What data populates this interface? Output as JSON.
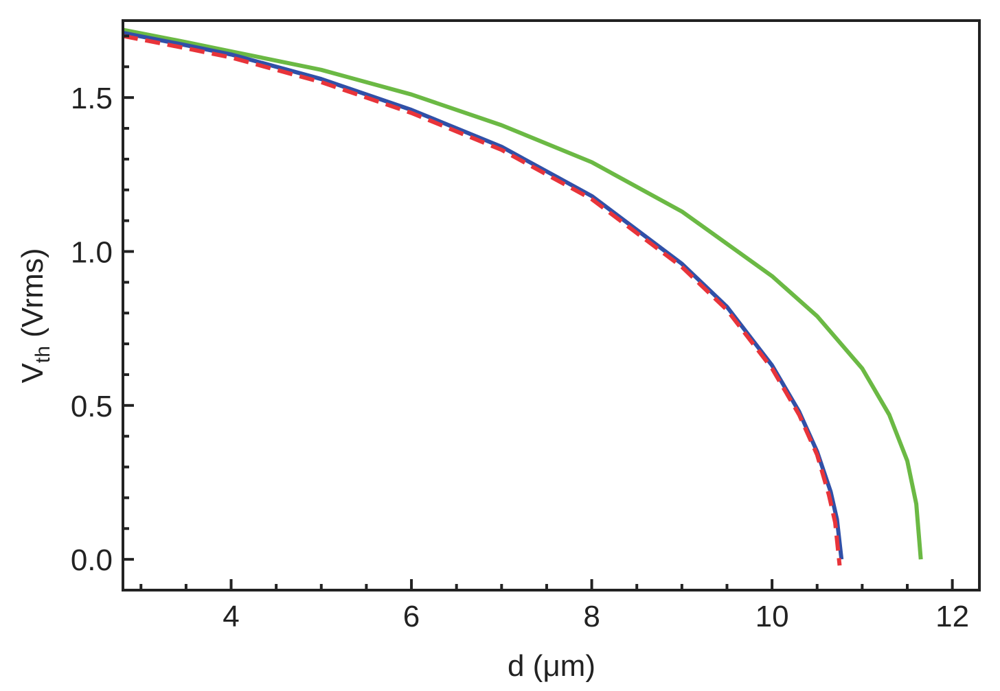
{
  "chart_data": {
    "type": "line",
    "xlabel": "d (μm)",
    "ylabel_main": "V",
    "ylabel_sub": "th",
    "ylabel_rest": " (Vrms)",
    "xlim": [
      2.8,
      12.3
    ],
    "ylim": [
      -0.1,
      1.75
    ],
    "x_ticks": [
      4,
      6,
      8,
      10,
      12
    ],
    "x_tick_labels": [
      "4",
      "6",
      "8",
      "10",
      "12"
    ],
    "y_ticks": [
      0.0,
      0.5,
      1.0,
      1.5
    ],
    "y_tick_labels": [
      "0.0",
      "0.5",
      "1.0",
      "1.5"
    ],
    "grid": false,
    "series": [
      {
        "color": "#6bb944",
        "style": "solid",
        "dc": 11.65,
        "x": [
          2.8,
          3.5,
          4.0,
          5.0,
          6.0,
          7.0,
          8.0,
          9.0,
          10.0,
          10.5,
          11.0,
          11.3,
          11.5,
          11.6,
          11.65
        ],
        "y": [
          1.72,
          1.68,
          1.65,
          1.59,
          1.51,
          1.41,
          1.29,
          1.13,
          0.92,
          0.79,
          0.62,
          0.47,
          0.32,
          0.18,
          0.0
        ]
      },
      {
        "color": "#3050a8",
        "style": "solid",
        "dc": 10.77,
        "x": [
          2.8,
          3.5,
          4.0,
          5.0,
          6.0,
          7.0,
          8.0,
          9.0,
          9.5,
          10.0,
          10.3,
          10.5,
          10.65,
          10.72,
          10.77
        ],
        "y": [
          1.71,
          1.67,
          1.64,
          1.56,
          1.46,
          1.34,
          1.18,
          0.96,
          0.82,
          0.63,
          0.48,
          0.35,
          0.22,
          0.13,
          0.0
        ]
      },
      {
        "color": "#e8343a",
        "style": "dashed",
        "dc": 10.75,
        "x": [
          2.8,
          3.5,
          4.0,
          5.0,
          6.0,
          7.0,
          8.0,
          9.0,
          9.5,
          10.0,
          10.3,
          10.5,
          10.63,
          10.7,
          10.75
        ],
        "y": [
          1.7,
          1.66,
          1.63,
          1.55,
          1.45,
          1.33,
          1.17,
          0.95,
          0.81,
          0.62,
          0.47,
          0.34,
          0.21,
          0.12,
          -0.02
        ]
      }
    ]
  }
}
